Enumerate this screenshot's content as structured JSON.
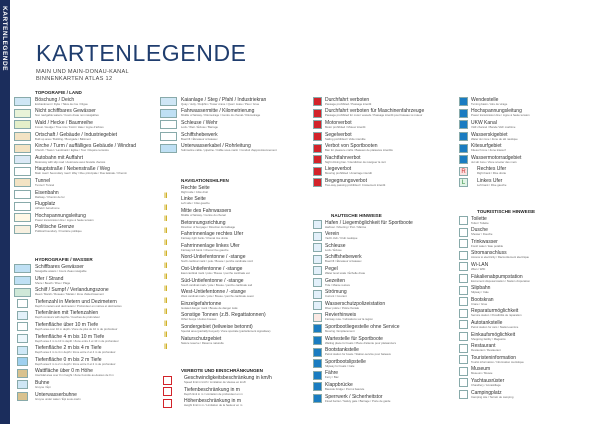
{
  "sidebar_label": "KARTENLEGENDE",
  "title": "KARTENLEGENDE",
  "subtitle1": "MAIN UND MAIN-DONAU-KANAL",
  "subtitle2": "BINNENKARTEN ATLAS 12",
  "columns": [
    [
      {
        "header": "TOPOGRAFIE / LAND",
        "items": [
          {
            "label": "Böschung / Deich",
            "sub": "Embankment / Dyke / Talus de rive / Digue",
            "color": "#cfe6f5",
            "icon": "embankment-icon"
          },
          {
            "label": "Nicht schiffbares Gewässer",
            "sub": "Non navigable waters / Cours d'eau non navigables",
            "color": "#e9f3d8",
            "icon": "non-navigable-water-icon"
          },
          {
            "label": "Wald / Hecke / Baumreihe",
            "sub": "Forest / Hedge / Tree row / Forêt / Haie / Ligne d'arbres",
            "color": "#e4efc9",
            "icon": "forest-icon"
          },
          {
            "label": "Ortschaft / Gebäude / Industriegebiet",
            "sub": "Built up area / Building / Bourgade / Bâtiment",
            "color": "#f3e3c4",
            "icon": "settlement-icon"
          },
          {
            "label": "Kirche / Turm / auffälliges Gebäude / Windrad",
            "sub": "Church / Tower / Landmark / Eglise / Tour / Repère terrestre",
            "color": "#f3e3c4",
            "icon": "church-icon"
          },
          {
            "label": "Autobahn mit Auffahrt",
            "sub": "Motorway with slip road / Autoroute avec bretelle d'accès",
            "color": "#dbe9f6",
            "icon": "motorway-icon"
          },
          {
            "label": "Hauptstraße / Nebenstraße / Weg",
            "sub": "Main road / Secondary road / Way / Rue principale / Rue latérale / Chemin",
            "color": "#fff",
            "icon": "road-icon"
          },
          {
            "label": "Tunnel",
            "sub": "Tunnel / Tunnel",
            "color": "#f3e3c4",
            "icon": "tunnel-icon"
          },
          {
            "label": "Eisenbahn",
            "sub": "Railway / Chemin de fer",
            "color": "#fff",
            "icon": "railway-icon"
          },
          {
            "label": "Flugplatz",
            "sub": "Airfield / Aérodrome",
            "color": "#fff",
            "icon": "airfield-icon"
          },
          {
            "label": "Hochspannungsleitung",
            "sub": "Power transmission line / Ligne à haute tension",
            "color": "#fff8e6",
            "icon": "power-line-icon"
          },
          {
            "label": "Politische Grenze",
            "sub": "Political boundary / Frontière politique",
            "color": "#f7f0e0",
            "icon": "boundary-icon"
          }
        ]
      },
      {
        "header": "HYDROGRAFIE / WASSER",
        "items": [
          {
            "label": "Schiffbares Gewässer",
            "sub": "Navigable waters / Cours d'eau navigable",
            "color": "#bfe0f4",
            "icon": "navigable-water-icon"
          },
          {
            "label": "Ufer / Strand",
            "sub": "Shore / Beach / Rive / Plage",
            "color": "#bfe0f4",
            "icon": "shore-icon"
          },
          {
            "label": "Schilf / Sumpf / Verlandungszone",
            "sub": "Reed / Marsh / Roseau / Marais / Zone d'atterrissement",
            "color": "#cfe8d8",
            "icon": "reed-icon"
          },
          {
            "label": "Tiefenzahl in Metern und Dezimetern",
            "sub": "Depth in meters and decimeters / Profondeur en mètres et décimètres",
            "color": "#fff",
            "icon": "depth-number-icon"
          },
          {
            "label": "Tiefenlinien mit Tiefenzahlen",
            "sub": "Depth contours with depths / Courbes de profondeur",
            "color": "#e3f1fa",
            "icon": "depth-contour-icon"
          },
          {
            "label": "Tiefenfläche über 10 m Tiefe",
            "sub": "Depth area over 10 m depth / Zone de plus de 10 m de profondeur",
            "color": "#fff",
            "icon": "depth-area-icon"
          },
          {
            "label": "Tiefenfläche 4 m bis 10 m Tiefe",
            "sub": "Depth area 4 m to 10 m depth / Zone entre 4 et 10 m de profondeur",
            "color": "#eef7fc",
            "icon": "depth-area-icon"
          },
          {
            "label": "Tiefenfläche 2 m bis 4 m Tiefe",
            "sub": "Depth area 2 m to 4 m depth / Zone entre 2 et 4 m de profondeur",
            "color": "#cfe8f7",
            "icon": "depth-area-icon"
          },
          {
            "label": "Tiefenfläche 0 m bis 2 m Tiefe",
            "sub": "Depth area 0 m to 2 m depth / Zone entre 0 et 2 m de profondeur",
            "color": "#9fd0ef",
            "icon": "depth-area-icon"
          },
          {
            "label": "Wattfläche über 0 m Höhe",
            "sub": "Intertidal area over 0 m height / Zone humide au-dessus de 0 m",
            "color": "#d9c28f",
            "icon": "tidal-flat-icon"
          },
          {
            "label": "Buhne",
            "sub": "Groyne / Épi",
            "color": "#cfe6f5",
            "icon": "groyne-icon"
          },
          {
            "label": "Unterwasserbuhne",
            "sub": "Groyne under water / Épi sous-marin",
            "color": "#d9c28f",
            "icon": "underwater-groyne-icon"
          }
        ]
      }
    ],
    [
      {
        "header": "",
        "items": [
          {
            "label": "Kaianlage / Steg / Pfahl / Industriekran",
            "sub": "Quay / Jetty / Dolphin / Tower crane / Quai / Jetée / Pieu / Grue",
            "color": "#cfe6f5",
            "icon": "quay-icon"
          },
          {
            "label": "Fahrwassermitte / Kilometrierung",
            "sub": "Middle of fairway / Kilometrage / Centre du chenal / Kilométrage",
            "color": "#bfe0f4",
            "icon": "fairway-icon"
          },
          {
            "label": "Schleuse / Wehr",
            "sub": "Lock / Weir / Écluse / Barrage",
            "color": "#fff",
            "icon": "lock-icon"
          },
          {
            "label": "Schiffshebewerk",
            "sub": "Boat lift / Élévateur à bateaux",
            "color": "#fff",
            "icon": "boat-lift-icon"
          },
          {
            "label": "Unterwasserkabel / Rohrleitung",
            "sub": "Submarine cable / pipeline / Câble sous-marin / Conduit d'approvisionnement",
            "color": "#bfe0f4",
            "icon": "cable-icon"
          }
        ]
      },
      {
        "header": "NAVIGATIONSHILFEN",
        "items": [
          {
            "label": "Rechte Seite",
            "sub": "Right side / Côté droit",
            "color": "#fff",
            "icon": "right-side-buoy-icon"
          },
          {
            "label": "Linke Seite",
            "sub": "Left side / Côté gauche",
            "color": "#fff",
            "icon": "left-side-buoy-icon"
          },
          {
            "label": "Mitte des Fahrwassers",
            "sub": "Middle of fairway / Centre du chenal",
            "color": "#fff",
            "icon": "mid-fairway-icon"
          },
          {
            "label": "Betonnungsrichtung",
            "sub": "Direction of buoyage / Direction du balisage",
            "color": "#fff",
            "icon": "buoyage-direction-icon"
          },
          {
            "label": "Fahrrinnenlage rechtes Ufer",
            "sub": "Fairway right bank / Chenal rive droite",
            "color": "#fff",
            "icon": "fairway-right-icon"
          },
          {
            "label": "Fahrrinnenlage linkes Ufer",
            "sub": "Fairway left bank / Chenal rive gauche",
            "color": "#fff",
            "icon": "fairway-left-icon"
          },
          {
            "label": "Nord-Untiefentonne / -stange",
            "sub": "North cardinal mark / pole / Bouée / perche cardinale nord",
            "color": "#fff",
            "icon": "north-cardinal-icon"
          },
          {
            "label": "Ost-Untiefentonne / -stange",
            "sub": "East cardinal mark / pole / Bouée / perche cardinale est",
            "color": "#fff",
            "icon": "east-cardinal-icon"
          },
          {
            "label": "Süd-Untiefentonne / -stange",
            "sub": "South cardinal mark / pole / Bouée / perche cardinale sud",
            "color": "#fff",
            "icon": "south-cardinal-icon"
          },
          {
            "label": "West-Untiefentonne / -stange",
            "sub": "West cardinal mark / pole / Bouée / perche cardinale ouest",
            "color": "#fff",
            "icon": "west-cardinal-icon"
          },
          {
            "label": "Einzelgefahrtonne",
            "sub": "Isolated danger mark / Bouée de danger isolé",
            "color": "#fff",
            "icon": "isolated-danger-icon"
          },
          {
            "label": "Sonstige Tonnen (z.B. Regattatonnen)",
            "sub": "Other buoys / Autres bouées",
            "color": "#fff",
            "icon": "other-buoy-icon"
          },
          {
            "label": "Sondergebiet (teilweise betonnt)",
            "sub": "Special area (partially buoyed) / Zone spéciale (partiellement signalisée)",
            "color": "#bfe0f4",
            "icon": "special-area-icon"
          },
          {
            "label": "Naturschutzgebiet",
            "sub": "Nature reserve / Réserve naturelle",
            "color": "#cfe6f5",
            "icon": "nature-reserve-icon"
          }
        ]
      },
      {
        "header": "VERBOTE UND EINSCHRÄNKUNGEN",
        "items": [
          {
            "label": "Geschwindigkeitsbeschränkung in km/h",
            "sub": "Speed limit in km/h / Limitation de vitesse en km/h",
            "color": "#fff",
            "icon": "speed-limit-icon"
          },
          {
            "label": "Tiefenbeschränkung in m",
            "sub": "Depth limit in m / Limitation de profondeur en m",
            "color": "#fff",
            "icon": "depth-limit-icon"
          },
          {
            "label": "Höhenbeschränkung in m",
            "sub": "Height limit in m / Limitation de la hauteur en m",
            "color": "#fff",
            "icon": "height-limit-icon"
          }
        ]
      }
    ],
    [
      {
        "header": "",
        "items": [
          {
            "label": "Durchfahrt verboten",
            "sub": "Passage prohibited / Passage interdit",
            "color": "#d2232a",
            "icon": "no-passage-icon"
          },
          {
            "label": "Durchfahrt verboten für Maschinenfahrzeuge",
            "sub": "Passage prohibited for motor vessels / Passage interdit pour bateaux à moteur",
            "color": "#d2232a",
            "icon": "no-motor-passage-icon"
          },
          {
            "label": "Motorverbot",
            "sub": "Motor prohibited / Moteur interdit",
            "color": "#d2232a",
            "icon": "no-motor-icon"
          },
          {
            "label": "Segelverbot",
            "sub": "Sailing prohibited / Voile interdite",
            "color": "#d2232a",
            "icon": "no-sailing-icon"
          },
          {
            "label": "Verbot von Sportbooten",
            "sub": "Ban for pleasure crafts / Bateaux de plaisance interdits",
            "color": "#d2232a",
            "icon": "no-pleasure-craft-icon"
          },
          {
            "label": "Nachtfahrverbot",
            "sub": "Night driving ban / Interdiction de naviguer la nuit",
            "color": "#d2232a",
            "icon": "no-night-navigation-icon"
          },
          {
            "label": "Liegeverbot",
            "sub": "Mooring prohibited / Amarrage interdit",
            "color": "#d2232a",
            "icon": "no-mooring-icon"
          },
          {
            "label": "Begegnungsverbot",
            "sub": "Two-way passing prohibited / Croisement interdit",
            "color": "#d2232a",
            "icon": "no-passing-icon"
          }
        ]
      },
      {
        "header": "NAUTISCHE HINWEISE",
        "items": [
          {
            "label": "Hafen / Liegemöglichkeit für Sportboote",
            "sub": "Harbour / Mooring / Port / Marina",
            "color": "#e3f0fa",
            "icon": "harbour-icon"
          },
          {
            "label": "Verein",
            "sub": "Yacht club / Club nautique",
            "color": "#e3f0fa",
            "icon": "club-icon"
          },
          {
            "label": "Schleuse",
            "sub": "Lock / Écluse",
            "color": "#e3f0fa",
            "icon": "lock-icon"
          },
          {
            "label": "Schiffshebewerk",
            "sub": "Boat lift / Élévateur à bateaux",
            "color": "#e3f0fa",
            "icon": "boat-lift-icon"
          },
          {
            "label": "Pegel",
            "sub": "Water level scale / Échelle d'eau",
            "color": "#e3f0fa",
            "icon": "gauge-icon"
          },
          {
            "label": "Gezeiten",
            "sub": "Tide / Marée restore",
            "color": "#e3f0fa",
            "icon": "tide-icon"
          },
          {
            "label": "Strömung",
            "sub": "Current / Courant",
            "color": "#e3f0fa",
            "icon": "current-icon"
          },
          {
            "label": "Wasserschutzpolizeistation",
            "sub": "River police / Police fluviale",
            "color": "#e3f0fa",
            "icon": "water-police-icon"
          },
          {
            "label": "Revierhinweis",
            "sub": "Fairway note / Indications sur la région",
            "color": "#fbe9e4",
            "icon": "fairway-note-icon"
          },
          {
            "label": "Sportbootliegestelle ohne Service",
            "sub": "Mooring / Emplacement",
            "color": "#1a7cc1",
            "icon": "mooring-icon"
          },
          {
            "label": "Wartestelle für Sportboote",
            "sub": "Waiting place for boats / Place d'attente pour plaisanciers",
            "color": "#1a7cc1",
            "icon": "waiting-place-icon"
          },
          {
            "label": "Boots­tankstelle",
            "sub": "Petrol station for boats / Station-service pour bateaux",
            "color": "#1a7cc1",
            "icon": "boat-fuel-icon"
          },
          {
            "label": "Sportbootslipstelle",
            "sub": "Slipway for boats / Cale",
            "color": "#1a7cc1",
            "icon": "slipway-icon"
          },
          {
            "label": "Fähre",
            "sub": "Ferry / Bac",
            "color": "#1a7cc1",
            "icon": "ferry-icon"
          },
          {
            "label": "Klappbrücke",
            "sub": "Bascule bridge / Pont à bascule",
            "color": "#1a7cc1",
            "icon": "bascule-bridge-icon"
          },
          {
            "label": "Sperrwerk / Sicherheitstor",
            "sub": "Flood barrier / Safety gate / Barrage / Porte de garde",
            "color": "#1a7cc1",
            "icon": "flood-barrier-icon"
          }
        ]
      }
    ],
    [
      {
        "header": "",
        "items": [
          {
            "label": "Wendestelle",
            "sub": "Turning basin / Aire de virage",
            "color": "#1a7cc1",
            "icon": "turning-basin-icon"
          },
          {
            "label": "Hochspannungsleitung",
            "sub": "Power transmission line / Ligne à haute tension",
            "color": "#1a7cc1",
            "icon": "power-line-icon"
          },
          {
            "label": "UKW Kanal",
            "sub": "VHF channel / Bande VHF maritime",
            "color": "#1a7cc1",
            "icon": "vhf-channel-icon"
          },
          {
            "label": "Wasserskigebiet",
            "sub": "Water ski zone / Zone de ski nautique",
            "color": "#1a7cc1",
            "icon": "water-ski-icon"
          },
          {
            "label": "Kitesurfgebiet",
            "sub": "Kitesurf zone / Zone kitesurf",
            "color": "#1a7cc1",
            "icon": "kitesurf-icon"
          },
          {
            "label": "Wassermotorradgebiet",
            "sub": "Jet ski zone / Zone scooter des mers",
            "color": "#1a7cc1",
            "icon": "jet-ski-icon"
          },
          {
            "label": "Rechtes Ufer",
            "sub": "Right bank / Rive droite",
            "color": "#fbe1e1",
            "icon": "right-bank-icon",
            "letter": "R"
          },
          {
            "label": "Linkes Ufer",
            "sub": "Left bank / Rive gauche",
            "color": "#e1f4e5",
            "icon": "left-bank-icon",
            "letter": "L"
          }
        ]
      },
      {
        "header": "TOURISTISCHE HINWEISE",
        "items": [
          {
            "label": "Toilette",
            "sub": "Toilet / Toilette",
            "color": "#fff",
            "icon": "toilet-icon"
          },
          {
            "label": "Dusche",
            "sub": "Shower / Douche",
            "color": "#fff",
            "icon": "shower-icon"
          },
          {
            "label": "Trinkwasser",
            "sub": "Fresh water / Eau potable",
            "color": "#fff",
            "icon": "drinking-water-icon"
          },
          {
            "label": "Stromanschluss",
            "sub": "Access to electricity / Raccordement électrique",
            "color": "#fff",
            "icon": "electricity-icon"
          },
          {
            "label": "Wi-LAN",
            "sub": "Wlan / WiFi",
            "color": "#fff",
            "icon": "wifi-icon"
          },
          {
            "label": "Fäkalienabpumpstation",
            "sub": "Excrement disposal station / Station d'épuration",
            "color": "#fff",
            "icon": "pump-out-icon"
          },
          {
            "label": "Slipbahn",
            "sub": "Slipway / Cale",
            "color": "#fff",
            "icon": "slipway-icon"
          },
          {
            "label": "Bootskran",
            "sub": "Crane / Grue",
            "color": "#fff",
            "icon": "crane-icon"
          },
          {
            "label": "Reparaturmöglichkeit",
            "sub": "Service station / Possibilité de réparation",
            "color": "#fff",
            "icon": "repair-icon"
          },
          {
            "label": "Autotankstelle",
            "sub": "Petrol station for cars / Station-service",
            "color": "#fff",
            "icon": "car-fuel-icon"
          },
          {
            "label": "Einkaufsmöglichkeit",
            "sub": "Shopping facility / Magasins",
            "color": "#fff",
            "icon": "shopping-icon"
          },
          {
            "label": "Restaurant",
            "sub": "Restaurant / Restaurant",
            "color": "#fff",
            "icon": "restaurant-icon"
          },
          {
            "label": "Touristeninformation",
            "sub": "Tourist information / Information touristique",
            "color": "#fff",
            "icon": "tourist-info-icon"
          },
          {
            "label": "Museum",
            "sub": "Museum / Musée",
            "color": "#fff",
            "icon": "museum-icon"
          },
          {
            "label": "Yachtausrüster",
            "sub": "Chandlery / Accastillage",
            "color": "#fff",
            "icon": "chandlery-icon"
          },
          {
            "label": "Campingplatz",
            "sub": "Camping site / Terrain de camping",
            "color": "#fff",
            "icon": "camping-icon"
          }
        ]
      }
    ]
  ]
}
